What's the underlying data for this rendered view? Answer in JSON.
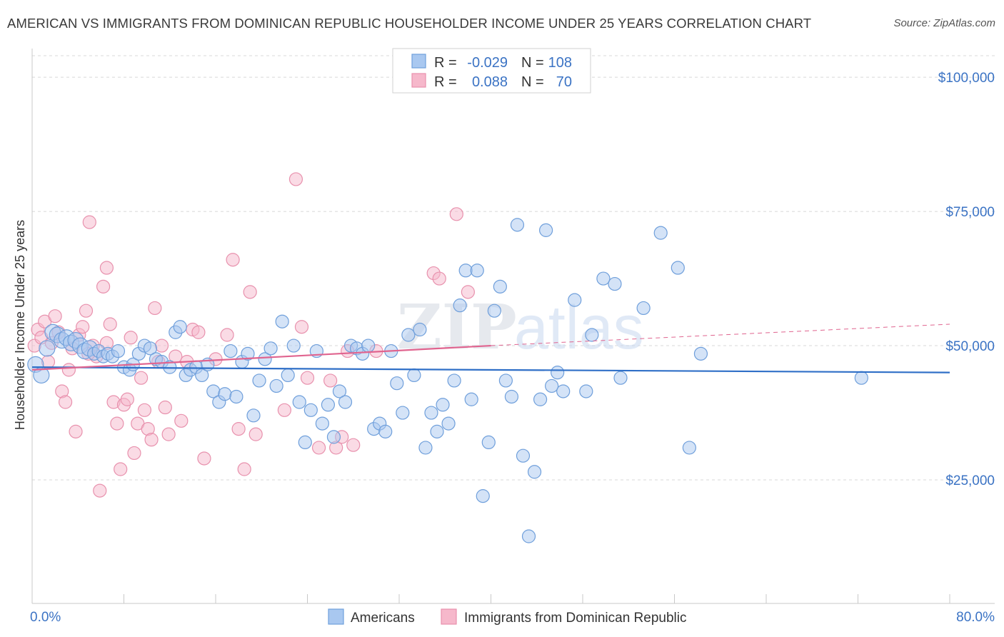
{
  "title": "AMERICAN VS IMMIGRANTS FROM DOMINICAN REPUBLIC HOUSEHOLDER INCOME UNDER 25 YEARS CORRELATION CHART",
  "source": "Source: ZipAtlas.com",
  "watermark": {
    "zip": "ZIP",
    "atlas": "atlas"
  },
  "colors": {
    "blue_fill": "#a9c8f0",
    "blue_stroke": "#6f9fdb",
    "blue_line": "#2f6fc7",
    "pink_fill": "#f6b8cb",
    "pink_stroke": "#e891ad",
    "pink_line": "#e0648f",
    "label_blue": "#3b73c4",
    "grid": "#d8d8d8"
  },
  "chart_data": {
    "type": "scatter",
    "title": "AMERICAN VS IMMIGRANTS FROM DOMINICAN REPUBLIC HOUSEHOLDER INCOME UNDER 25 YEARS CORRELATION CHART",
    "xlabel": "",
    "ylabel": "Householder Income Under 25 years",
    "xlim": [
      0,
      80
    ],
    "ylim": [
      2000,
      104000
    ],
    "x_tick_labels": [
      "0.0%",
      "80.0%"
    ],
    "y_ticks": [
      25000,
      50000,
      75000,
      100000
    ],
    "y_tick_labels": [
      "$25,000",
      "$50,000",
      "$75,000",
      "$100,000"
    ],
    "legend": {
      "r_label": "R =",
      "n_label": "N =",
      "entries": [
        {
          "series": "Americans",
          "r": "-0.029",
          "n": "108"
        },
        {
          "series": "Immigrants from Dominican Republic",
          "r": "0.088",
          "n": "70"
        }
      ]
    },
    "series": [
      {
        "name": "Americans",
        "color": "#a9c8f0",
        "trend": {
          "x": [
            0,
            80
          ],
          "y": [
            46000,
            45000
          ],
          "dashed_extension": false
        },
        "points": [
          [
            0.3,
            46.5
          ],
          [
            0.8,
            44.5
          ],
          [
            1.3,
            49.5
          ],
          [
            1.8,
            52.5
          ],
          [
            2.2,
            52.0
          ],
          [
            2.6,
            51.0
          ],
          [
            3.0,
            51.5
          ],
          [
            3.4,
            50.5
          ],
          [
            3.8,
            51.0
          ],
          [
            4.2,
            50.0
          ],
          [
            4.6,
            49.0
          ],
          [
            5.0,
            49.5
          ],
          [
            5.4,
            48.5
          ],
          [
            5.8,
            49.0
          ],
          [
            6.2,
            48.0
          ],
          [
            6.6,
            48.5
          ],
          [
            7.0,
            48.0
          ],
          [
            7.5,
            49.0
          ],
          [
            8.0,
            46.0
          ],
          [
            8.5,
            45.5
          ],
          [
            8.8,
            46.5
          ],
          [
            9.3,
            48.5
          ],
          [
            9.8,
            50.0
          ],
          [
            10.3,
            49.5
          ],
          [
            10.8,
            47.5
          ],
          [
            11.3,
            47.0
          ],
          [
            12.0,
            46.0
          ],
          [
            12.5,
            52.5
          ],
          [
            12.9,
            53.5
          ],
          [
            13.4,
            44.5
          ],
          [
            13.8,
            45.5
          ],
          [
            14.3,
            46.0
          ],
          [
            14.8,
            44.5
          ],
          [
            15.3,
            46.5
          ],
          [
            15.8,
            41.5
          ],
          [
            16.3,
            39.5
          ],
          [
            16.8,
            41.0
          ],
          [
            17.3,
            49.0
          ],
          [
            17.8,
            40.5
          ],
          [
            18.3,
            47.0
          ],
          [
            18.8,
            48.5
          ],
          [
            19.3,
            37.0
          ],
          [
            19.8,
            43.5
          ],
          [
            20.3,
            47.5
          ],
          [
            20.8,
            49.5
          ],
          [
            21.3,
            42.5
          ],
          [
            21.8,
            54.5
          ],
          [
            22.3,
            44.5
          ],
          [
            22.8,
            50.0
          ],
          [
            23.3,
            39.5
          ],
          [
            23.8,
            32.0
          ],
          [
            24.3,
            38.0
          ],
          [
            24.8,
            49.0
          ],
          [
            25.3,
            35.5
          ],
          [
            25.8,
            39.0
          ],
          [
            26.3,
            33.0
          ],
          [
            26.8,
            41.5
          ],
          [
            27.3,
            39.5
          ],
          [
            27.8,
            50.0
          ],
          [
            28.3,
            49.5
          ],
          [
            28.8,
            48.5
          ],
          [
            29.3,
            50.0
          ],
          [
            29.8,
            34.5
          ],
          [
            30.3,
            35.5
          ],
          [
            30.8,
            34.0
          ],
          [
            31.3,
            49.0
          ],
          [
            31.8,
            43.0
          ],
          [
            32.3,
            37.5
          ],
          [
            32.8,
            52.0
          ],
          [
            33.3,
            44.5
          ],
          [
            33.8,
            53.0
          ],
          [
            34.3,
            31.0
          ],
          [
            34.8,
            37.5
          ],
          [
            35.3,
            34.0
          ],
          [
            35.8,
            39.0
          ],
          [
            36.3,
            35.5
          ],
          [
            36.8,
            43.5
          ],
          [
            37.3,
            57.5
          ],
          [
            37.8,
            64.0
          ],
          [
            38.3,
            40.0
          ],
          [
            38.8,
            64.0
          ],
          [
            39.3,
            22.0
          ],
          [
            39.8,
            32.0
          ],
          [
            40.3,
            56.5
          ],
          [
            40.8,
            61.0
          ],
          [
            41.3,
            43.5
          ],
          [
            41.8,
            40.5
          ],
          [
            42.3,
            72.5
          ],
          [
            42.8,
            29.5
          ],
          [
            43.3,
            14.5
          ],
          [
            43.8,
            26.5
          ],
          [
            44.3,
            40.0
          ],
          [
            44.8,
            71.5
          ],
          [
            45.3,
            42.5
          ],
          [
            45.8,
            45.0
          ],
          [
            46.3,
            41.5
          ],
          [
            47.3,
            58.5
          ],
          [
            48.3,
            41.5
          ],
          [
            48.8,
            52.0
          ],
          [
            49.8,
            62.5
          ],
          [
            50.8,
            61.5
          ],
          [
            51.3,
            44.0
          ],
          [
            53.3,
            57.0
          ],
          [
            54.8,
            71.0
          ],
          [
            56.3,
            64.5
          ],
          [
            57.3,
            31.0
          ],
          [
            58.3,
            48.5
          ],
          [
            72.3,
            44.0
          ]
        ]
      },
      {
        "name": "Immigrants from Dominican Republic",
        "color": "#f6b8cb",
        "trend": {
          "x": [
            0,
            40
          ],
          "y": [
            45500,
            50000
          ],
          "dashed_extension": true,
          "dashed_to": [
            80,
            54000
          ]
        },
        "points": [
          [
            0.2,
            50.0
          ],
          [
            0.5,
            53.0
          ],
          [
            0.8,
            51.5
          ],
          [
            1.1,
            54.5
          ],
          [
            1.4,
            47.0
          ],
          [
            1.7,
            50.5
          ],
          [
            2.0,
            55.5
          ],
          [
            2.3,
            52.5
          ],
          [
            2.6,
            41.5
          ],
          [
            2.9,
            39.5
          ],
          [
            3.2,
            45.5
          ],
          [
            3.5,
            49.5
          ],
          [
            3.8,
            34.0
          ],
          [
            4.1,
            52.0
          ],
          [
            4.4,
            53.5
          ],
          [
            4.7,
            56.5
          ],
          [
            5.0,
            73.0
          ],
          [
            5.3,
            50.0
          ],
          [
            5.6,
            48.0
          ],
          [
            5.9,
            23.0
          ],
          [
            6.2,
            61.0
          ],
          [
            6.5,
            64.5
          ],
          [
            6.8,
            54.0
          ],
          [
            7.1,
            39.5
          ],
          [
            7.4,
            35.5
          ],
          [
            7.7,
            27.0
          ],
          [
            8.0,
            39.0
          ],
          [
            8.3,
            40.0
          ],
          [
            8.6,
            51.5
          ],
          [
            8.9,
            30.0
          ],
          [
            9.2,
            35.5
          ],
          [
            9.5,
            44.0
          ],
          [
            9.8,
            38.0
          ],
          [
            10.1,
            34.5
          ],
          [
            10.4,
            32.5
          ],
          [
            10.7,
            57.0
          ],
          [
            11.0,
            47.0
          ],
          [
            11.3,
            50.0
          ],
          [
            11.6,
            38.5
          ],
          [
            11.9,
            33.5
          ],
          [
            12.5,
            48.0
          ],
          [
            13.0,
            36.0
          ],
          [
            13.5,
            47.0
          ],
          [
            14.0,
            53.0
          ],
          [
            14.5,
            52.5
          ],
          [
            15.0,
            29.0
          ],
          [
            16.0,
            47.5
          ],
          [
            17.0,
            52.0
          ],
          [
            17.5,
            66.0
          ],
          [
            18.0,
            34.5
          ],
          [
            18.5,
            27.0
          ],
          [
            19.0,
            60.0
          ],
          [
            19.5,
            33.5
          ],
          [
            22.0,
            38.0
          ],
          [
            23.0,
            81.0
          ],
          [
            23.5,
            53.5
          ],
          [
            24.0,
            44.0
          ],
          [
            25.0,
            31.0
          ],
          [
            26.0,
            43.5
          ],
          [
            26.5,
            31.0
          ],
          [
            27.0,
            33.0
          ],
          [
            27.5,
            49.0
          ],
          [
            28.0,
            31.5
          ],
          [
            30.0,
            49.0
          ],
          [
            35.0,
            63.5
          ],
          [
            35.5,
            62.5
          ],
          [
            37.0,
            74.5
          ],
          [
            38.0,
            60.0
          ],
          [
            4.9,
            48.5
          ],
          [
            6.5,
            50.5
          ]
        ]
      }
    ]
  },
  "bottom_legend": [
    "Americans",
    "Immigrants from Dominican Republic"
  ]
}
